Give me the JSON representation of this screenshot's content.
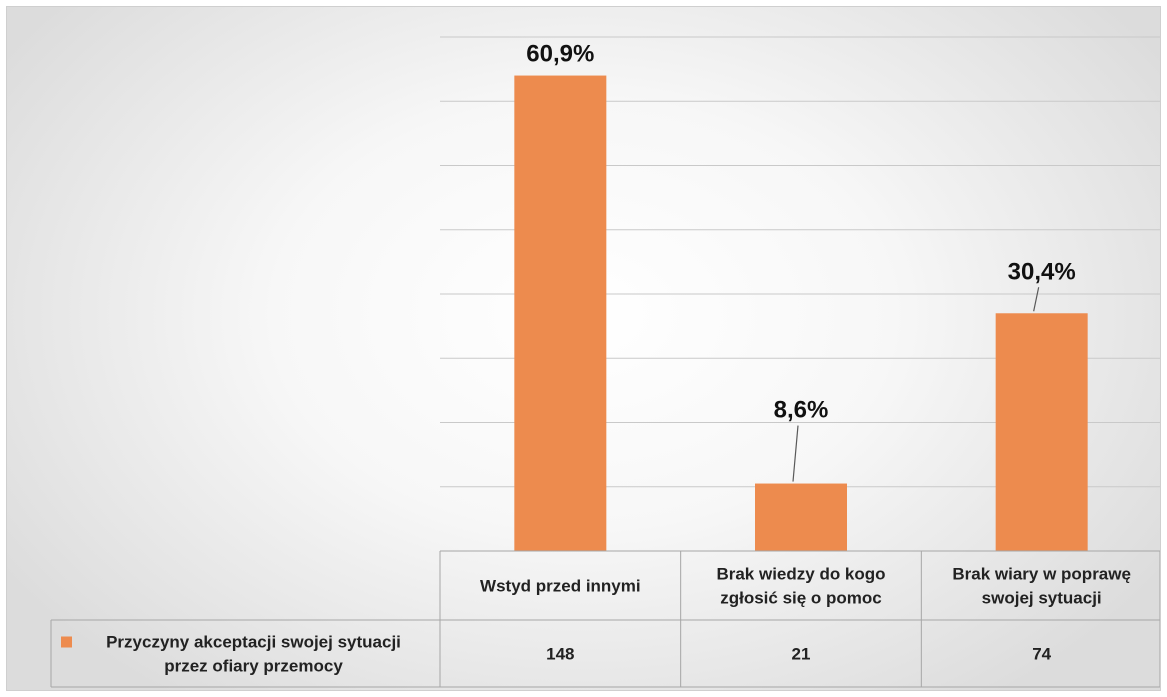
{
  "chart_data": {
    "type": "bar",
    "categories": [
      [
        "Wstyd przed innymi"
      ],
      [
        "Brak wiedzy do kogo",
        "zgłosić się o pomoc"
      ],
      [
        "Brak wiary w poprawę",
        "swojej sytuacji"
      ]
    ],
    "series": [
      {
        "name": [
          "Przyczyny akceptacji swojej sytuacji",
          "przez ofiary przemocy"
        ],
        "values": [
          148,
          21,
          74
        ],
        "data_labels": [
          "60,9%",
          "8,6%",
          "30,4%"
        ]
      }
    ],
    "ylim": [
      0,
      160
    ],
    "grid": true,
    "legend": "data-table",
    "colors": {
      "bar": "#ED8B4E",
      "grid": "#c9c9c9",
      "table_border": "#a6a6a6"
    }
  }
}
